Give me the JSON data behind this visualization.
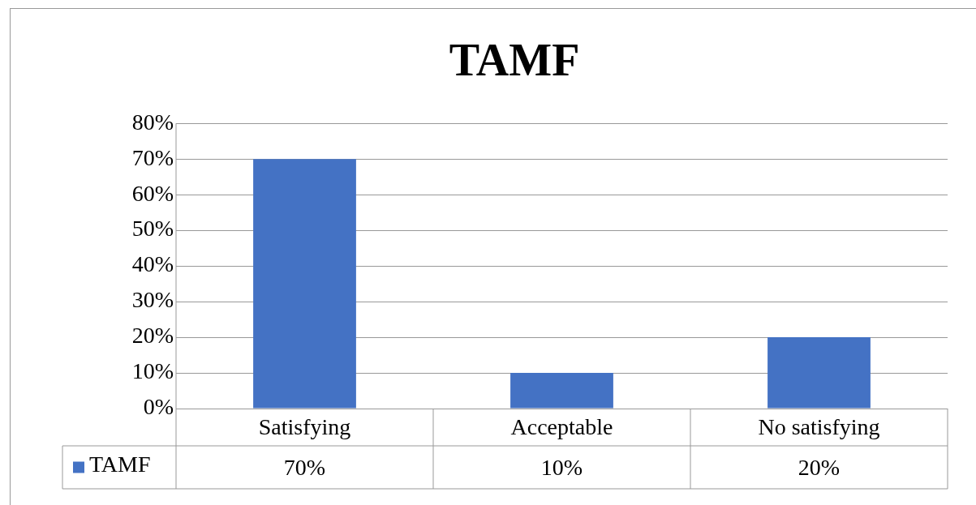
{
  "chart_data": {
    "type": "bar",
    "title": "TAMF",
    "categories": [
      "Satisfying",
      "Acceptable",
      "No satisfying"
    ],
    "series": [
      {
        "name": "TAMF",
        "color": "#4472c4",
        "values": [
          70,
          10,
          20
        ],
        "value_labels": [
          "70%",
          "10%",
          "20%"
        ]
      }
    ],
    "ylim": [
      0,
      80
    ],
    "yticks": [
      {
        "value": 0,
        "label": "0%"
      },
      {
        "value": 10,
        "label": "10%"
      },
      {
        "value": 20,
        "label": "20%"
      },
      {
        "value": 30,
        "label": "30%"
      },
      {
        "value": 40,
        "label": "40%"
      },
      {
        "value": 50,
        "label": "50%"
      },
      {
        "value": 60,
        "label": "60%"
      },
      {
        "value": 70,
        "label": "70%"
      },
      {
        "value": 80,
        "label": "80%"
      }
    ],
    "grid": "y",
    "legend": "bottom"
  }
}
